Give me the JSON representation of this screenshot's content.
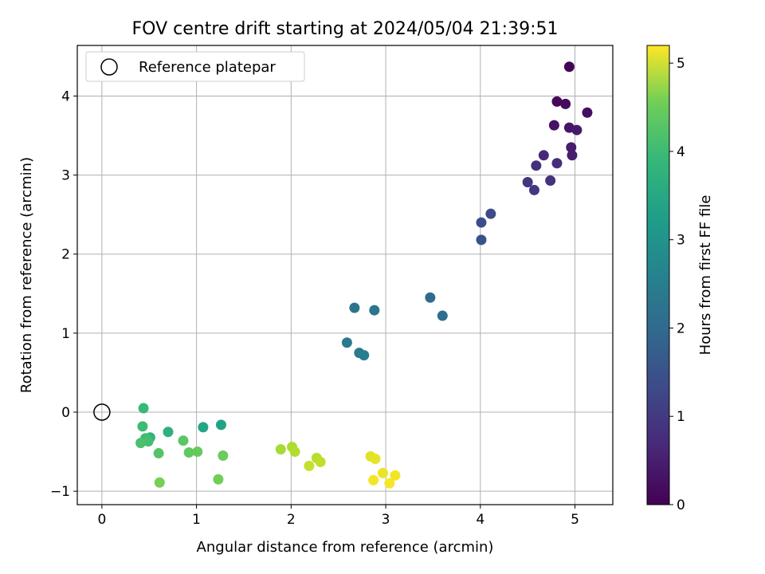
{
  "chart_data": {
    "type": "scatter",
    "title": "FOV centre drift starting at 2024/05/04 21:39:51",
    "xlabel": "Angular distance from reference (arcmin)",
    "ylabel": "Rotation from reference (arcmin)",
    "xlim": [
      -0.26,
      5.4
    ],
    "ylim": [
      -1.17,
      4.64
    ],
    "xticks": [
      0,
      1,
      2,
      3,
      4,
      5
    ],
    "yticks": [
      -1,
      0,
      1,
      2,
      3,
      4
    ],
    "xtick_labels": [
      "0",
      "1",
      "2",
      "3",
      "4",
      "5"
    ],
    "ytick_labels": [
      "−1",
      "0",
      "1",
      "2",
      "3",
      "4"
    ],
    "grid": true,
    "legend": {
      "position": "top-left",
      "entries": [
        "Reference platepar"
      ]
    },
    "reference_point": {
      "x": 0,
      "y": 0
    },
    "colorbar": {
      "label": "Hours from first FF file",
      "min": 0,
      "max": 5.2,
      "ticks": [
        0,
        1,
        2,
        3,
        4,
        5
      ],
      "tick_labels": [
        "0",
        "1",
        "2",
        "3",
        "4",
        "5"
      ],
      "colormap": "viridis"
    },
    "points": [
      {
        "x": 4.94,
        "y": 4.37,
        "c": 0.05
      },
      {
        "x": 4.81,
        "y": 3.93,
        "c": 0.1
      },
      {
        "x": 4.9,
        "y": 3.9,
        "c": 0.15
      },
      {
        "x": 5.13,
        "y": 3.79,
        "c": 0.2
      },
      {
        "x": 4.78,
        "y": 3.63,
        "c": 0.25
      },
      {
        "x": 4.94,
        "y": 3.6,
        "c": 0.3
      },
      {
        "x": 5.02,
        "y": 3.57,
        "c": 0.35
      },
      {
        "x": 4.96,
        "y": 3.35,
        "c": 0.4
      },
      {
        "x": 4.97,
        "y": 3.25,
        "c": 0.45
      },
      {
        "x": 4.67,
        "y": 3.25,
        "c": 0.6
      },
      {
        "x": 4.81,
        "y": 3.15,
        "c": 0.65
      },
      {
        "x": 4.59,
        "y": 3.12,
        "c": 0.7
      },
      {
        "x": 4.74,
        "y": 2.93,
        "c": 0.75
      },
      {
        "x": 4.5,
        "y": 2.91,
        "c": 0.8
      },
      {
        "x": 4.57,
        "y": 2.81,
        "c": 0.85
      },
      {
        "x": 4.11,
        "y": 2.51,
        "c": 1.2
      },
      {
        "x": 4.01,
        "y": 2.4,
        "c": 1.25
      },
      {
        "x": 4.01,
        "y": 2.18,
        "c": 1.3
      },
      {
        "x": 3.47,
        "y": 1.45,
        "c": 1.8
      },
      {
        "x": 3.6,
        "y": 1.22,
        "c": 1.85
      },
      {
        "x": 2.67,
        "y": 1.32,
        "c": 2.0
      },
      {
        "x": 2.88,
        "y": 1.29,
        "c": 2.05
      },
      {
        "x": 2.59,
        "y": 0.88,
        "c": 2.1
      },
      {
        "x": 2.72,
        "y": 0.75,
        "c": 2.15
      },
      {
        "x": 2.77,
        "y": 0.72,
        "c": 2.2
      },
      {
        "x": 1.26,
        "y": -0.16,
        "c": 3.0
      },
      {
        "x": 1.07,
        "y": -0.19,
        "c": 3.05
      },
      {
        "x": 0.7,
        "y": -0.25,
        "c": 3.3
      },
      {
        "x": 0.51,
        "y": -0.32,
        "c": 3.4
      },
      {
        "x": 0.44,
        "y": 0.05,
        "c": 3.5
      },
      {
        "x": 0.43,
        "y": -0.18,
        "c": 3.55
      },
      {
        "x": 0.46,
        "y": -0.33,
        "c": 3.6
      },
      {
        "x": 0.49,
        "y": -0.37,
        "c": 3.65
      },
      {
        "x": 0.41,
        "y": -0.39,
        "c": 3.7
      },
      {
        "x": 0.6,
        "y": -0.52,
        "c": 3.8
      },
      {
        "x": 0.86,
        "y": -0.36,
        "c": 3.85
      },
      {
        "x": 0.92,
        "y": -0.51,
        "c": 3.9
      },
      {
        "x": 1.01,
        "y": -0.5,
        "c": 3.95
      },
      {
        "x": 1.28,
        "y": -0.55,
        "c": 4.0
      },
      {
        "x": 1.23,
        "y": -0.85,
        "c": 4.05
      },
      {
        "x": 0.61,
        "y": -0.89,
        "c": 4.1
      },
      {
        "x": 1.89,
        "y": -0.47,
        "c": 4.5
      },
      {
        "x": 2.01,
        "y": -0.44,
        "c": 4.55
      },
      {
        "x": 2.04,
        "y": -0.5,
        "c": 4.6
      },
      {
        "x": 2.27,
        "y": -0.58,
        "c": 4.65
      },
      {
        "x": 2.31,
        "y": -0.63,
        "c": 4.7
      },
      {
        "x": 2.19,
        "y": -0.68,
        "c": 4.75
      },
      {
        "x": 2.84,
        "y": -0.56,
        "c": 4.95
      },
      {
        "x": 2.89,
        "y": -0.59,
        "c": 5.0
      },
      {
        "x": 2.97,
        "y": -0.77,
        "c": 5.05
      },
      {
        "x": 3.1,
        "y": -0.8,
        "c": 5.1
      },
      {
        "x": 2.87,
        "y": -0.86,
        "c": 5.12
      },
      {
        "x": 3.04,
        "y": -0.9,
        "c": 5.15
      }
    ]
  }
}
